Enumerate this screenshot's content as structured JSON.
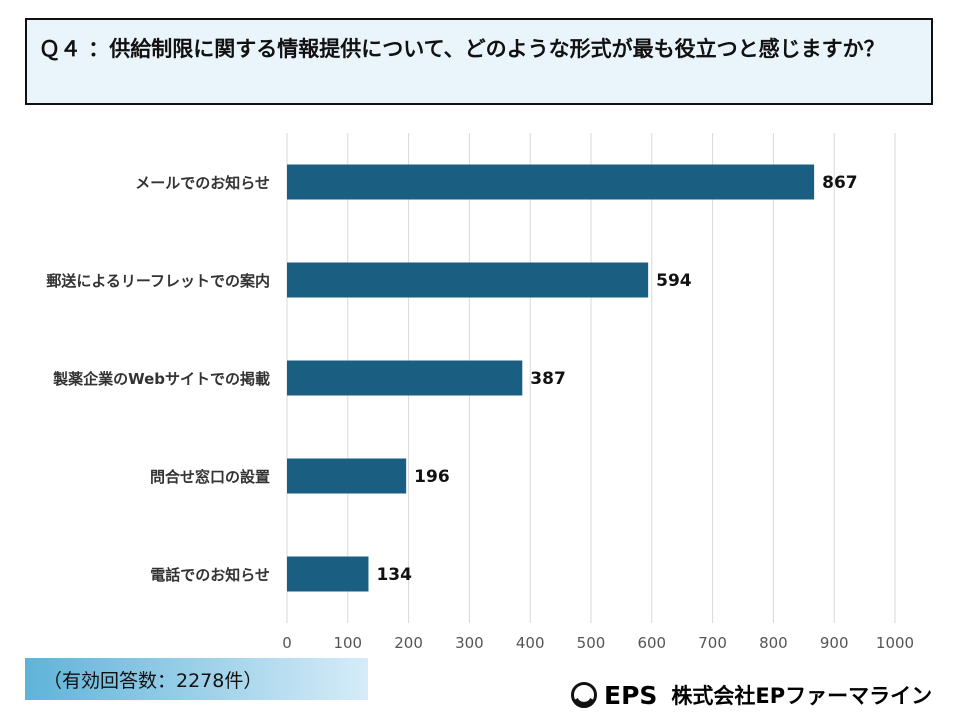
{
  "header": {
    "title": "Ｑ４ ：供給制限に関する情報提供について、どのような形式が最も役立つと感じますか？"
  },
  "chart_data": {
    "type": "bar",
    "orientation": "horizontal",
    "categories": [
      "メールでのお知らせ",
      "郵送によるリーフレットでの案内",
      "製薬企業のWebサイトでの掲載",
      "問合せ窓口の設置",
      "電話でのお知らせ"
    ],
    "values": [
      867,
      594,
      387,
      196,
      134
    ],
    "xlim": [
      0,
      1000
    ],
    "ticks": [
      0,
      100,
      200,
      300,
      400,
      500,
      600,
      700,
      800,
      900,
      1000
    ],
    "grid": true,
    "bar_color": "#1a5f82"
  },
  "footnote": "（有効回答数：2278件）",
  "logo": {
    "mark": "eps-circle-logo-icon",
    "brand": "EPS",
    "company": "株式会社EPファーマライン"
  }
}
